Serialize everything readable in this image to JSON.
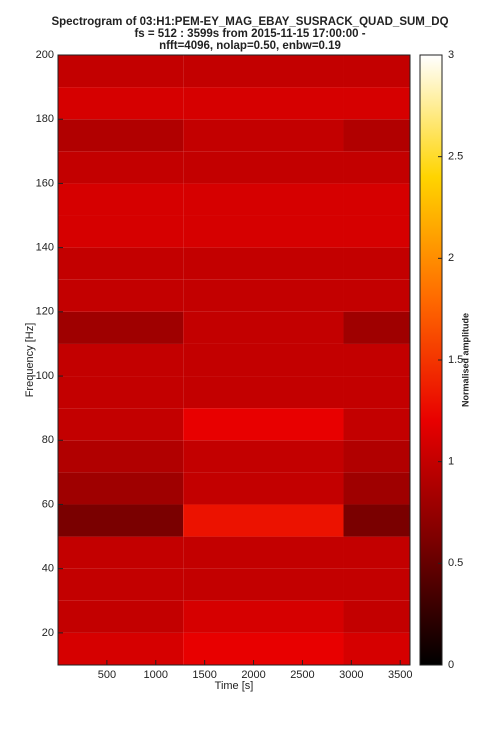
{
  "chart_data": {
    "type": "heatmap",
    "title": [
      "Spectrogram of 03:H1:PEM-EY_MAG_EBAY_SUSRACK_QUAD_SUM_DQ",
      "fs = 512 : 3599s from 2015-11-15 17:00:00 -",
      "nfft=4096, nolap=0.50, enbw=0.19"
    ],
    "x_label": "Time [s]",
    "y_label": "Frequency [Hz]",
    "colorbar_label": "Normalised amplitude",
    "x_edges": [
      0,
      1280,
      2920,
      3600
    ],
    "y_edges": [
      10,
      20,
      30,
      40,
      50,
      60,
      70,
      80,
      90,
      100,
      110,
      120,
      130,
      140,
      150,
      160,
      170,
      180,
      190,
      200
    ],
    "values": [
      [
        1.1,
        1.2,
        1.1
      ],
      [
        1.0,
        1.1,
        1.0
      ],
      [
        1.0,
        1.0,
        1.0
      ],
      [
        1.0,
        1.0,
        1.0
      ],
      [
        0.6,
        1.3,
        0.6
      ],
      [
        0.8,
        1.0,
        0.8
      ],
      [
        0.9,
        1.0,
        0.9
      ],
      [
        1.0,
        1.2,
        1.0
      ],
      [
        1.0,
        1.0,
        1.0
      ],
      [
        1.0,
        1.0,
        1.0
      ],
      [
        0.8,
        1.0,
        0.8
      ],
      [
        1.0,
        1.0,
        1.0
      ],
      [
        1.0,
        1.0,
        1.0
      ],
      [
        1.1,
        1.1,
        1.1
      ],
      [
        1.1,
        1.1,
        1.1
      ],
      [
        1.0,
        1.0,
        1.0
      ],
      [
        0.9,
        1.0,
        0.9
      ],
      [
        1.1,
        1.1,
        1.1
      ],
      [
        1.0,
        1.0,
        1.0
      ]
    ],
    "xlim": [
      0,
      3600
    ],
    "xticks": [
      500,
      1000,
      1500,
      2000,
      2500,
      3000,
      3500
    ],
    "ylim": [
      10,
      200
    ],
    "yticks": [
      20,
      40,
      60,
      80,
      100,
      120,
      140,
      160,
      180,
      200
    ],
    "clim": [
      0,
      3
    ],
    "cticks": [
      0,
      0.5,
      1,
      1.5,
      2,
      2.5,
      3
    ],
    "colormap": [
      "#000000",
      "#7a0000",
      "#e80000",
      "#ff6a00",
      "#ffd400",
      "#ffffff"
    ]
  }
}
